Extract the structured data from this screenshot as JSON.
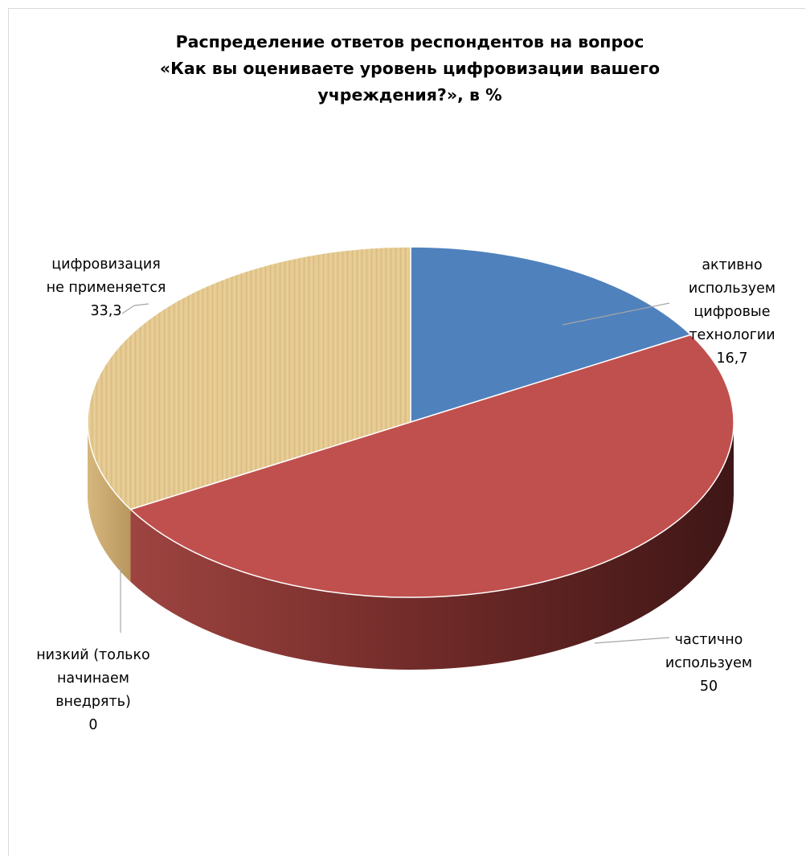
{
  "chart_data": {
    "type": "pie",
    "title": [
      "Распределение ответов респондентов на вопрос",
      "«Как вы оцениваете уровень цифровизации вашего",
      "учреждения?», в %"
    ],
    "slices": [
      {
        "label": [
          "активно",
          "используем",
          "цифровые",
          "технологии"
        ],
        "value": 16.7,
        "value_text": "16,7",
        "color": "#4f81bd"
      },
      {
        "label": [
          "частично",
          "используем"
        ],
        "value": 50,
        "value_text": "50",
        "color": "#c0504d"
      },
      {
        "label": [
          "низкий (только",
          "начинаем",
          "внедрять)"
        ],
        "value": 0,
        "value_text": "0",
        "color": "#c0504d"
      },
      {
        "label": [
          "цифровизация",
          "не применяется"
        ],
        "value": 33.3,
        "value_text": "33,3",
        "color": "#e2c28a"
      }
    ]
  }
}
